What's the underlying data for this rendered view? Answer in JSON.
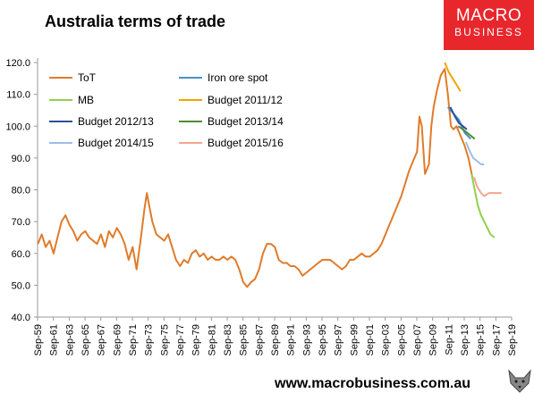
{
  "title": "Australia terms of trade",
  "logo": {
    "line1": "MACRO",
    "line2": "BUSINESS",
    "color": "#e8272c"
  },
  "footer": "www.macrobusiness.com.au",
  "chart_data": {
    "type": "line",
    "ylim": [
      40,
      120
    ],
    "yticks": [
      "40.0",
      "50.0",
      "60.0",
      "70.0",
      "80.0",
      "90.0",
      "100.0",
      "110.0",
      "120.0"
    ],
    "xticks": [
      "Sep-59",
      "Sep-61",
      "Sep-63",
      "Sep-65",
      "Sep-67",
      "Sep-69",
      "Sep-71",
      "Sep-73",
      "Sep-75",
      "Sep-77",
      "Sep-79",
      "Sep-81",
      "Sep-83",
      "Sep-85",
      "Sep-87",
      "Sep-89",
      "Sep-91",
      "Sep-93",
      "Sep-95",
      "Sep-97",
      "Sep-99",
      "Sep-01",
      "Sep-03",
      "Sep-05",
      "Sep-07",
      "Sep-09",
      "Sep-11",
      "Sep-13",
      "Sep-15",
      "Sep-17",
      "Sep-19"
    ],
    "xrange": [
      1959.67,
      2019.67
    ],
    "legend_placement": "top-left",
    "series": [
      {
        "name": "ToT",
        "color": "#e07b2a",
        "x": [
          1959.7,
          1960.2,
          1960.7,
          1961.2,
          1961.7,
          1962.2,
          1962.7,
          1963.2,
          1963.7,
          1964.2,
          1964.7,
          1965.2,
          1965.7,
          1966.2,
          1966.7,
          1967.2,
          1967.7,
          1968.2,
          1968.7,
          1969.2,
          1969.7,
          1970.2,
          1970.7,
          1971.2,
          1971.7,
          1972.2,
          1972.7,
          1973.2,
          1973.5,
          1973.8,
          1974.2,
          1974.7,
          1975.2,
          1975.7,
          1976.2,
          1976.7,
          1977.2,
          1977.7,
          1978.2,
          1978.7,
          1979.2,
          1979.7,
          1980.2,
          1980.7,
          1981.2,
          1981.7,
          1982.2,
          1982.7,
          1983.2,
          1983.7,
          1984.2,
          1984.7,
          1985.2,
          1985.7,
          1986.2,
          1986.7,
          1987.2,
          1987.7,
          1988.2,
          1988.7,
          1989.2,
          1989.7,
          1990.2,
          1990.7,
          1991.2,
          1991.7,
          1992.2,
          1992.7,
          1993.2,
          1993.7,
          1994.2,
          1994.7,
          1995.2,
          1995.7,
          1996.2,
          1996.7,
          1997.2,
          1997.7,
          1998.2,
          1998.7,
          1999.2,
          1999.7,
          2000.2,
          2000.7,
          2001.2,
          2001.7,
          2002.2,
          2002.7,
          2003.2,
          2003.7,
          2004.2,
          2004.7,
          2005.2,
          2005.7,
          2006.2,
          2006.7,
          2007.2,
          2007.7,
          2008.0,
          2008.3,
          2008.7,
          2009.2,
          2009.5,
          2009.8,
          2010.2,
          2010.7,
          2011.2,
          2011.6,
          2012.0,
          2012.3,
          2012.7,
          2013.2,
          2013.7,
          2014.2,
          2014.7
        ],
        "y": [
          63,
          66,
          62,
          64,
          60,
          65,
          70,
          72,
          69,
          67,
          64,
          66,
          67,
          65,
          64,
          63,
          66,
          62,
          67,
          65,
          68,
          66,
          63,
          58,
          62,
          55,
          64,
          74,
          79,
          75,
          70,
          66,
          65,
          64,
          66,
          62,
          58,
          56,
          58,
          57,
          60,
          61,
          59,
          60,
          58,
          59,
          58,
          58,
          59,
          58,
          59,
          58,
          55,
          51,
          49.5,
          51,
          52,
          55,
          60,
          63,
          63,
          62,
          58,
          57,
          57,
          56,
          56,
          55,
          53,
          54,
          55,
          56,
          57,
          58,
          58,
          58,
          57,
          56,
          55,
          56,
          58,
          58,
          59,
          60,
          59,
          59,
          60,
          61,
          63,
          66,
          69,
          72,
          75,
          78,
          82,
          86,
          89,
          92,
          103,
          100,
          85,
          88,
          100,
          106,
          111,
          116,
          118,
          110,
          100,
          99,
          100,
          97,
          94,
          90,
          84
        ]
      },
      {
        "name": "Iron ore spot",
        "color": "#4a90c8",
        "x": [
          2011.6,
          2012.3,
          2013.0,
          2013.7,
          2014.5
        ],
        "y": [
          106,
          104,
          102,
          98,
          96
        ]
      },
      {
        "name": "MB",
        "color": "#8fd14f",
        "x": [
          2014.6,
          2015.0,
          2015.4,
          2015.8,
          2016.2,
          2016.6,
          2017.0,
          2017.5
        ],
        "y": [
          85,
          80,
          75,
          72,
          70,
          68,
          66,
          65
        ]
      },
      {
        "name": "Budget 2011/12",
        "color": "#f0a400",
        "x": [
          2011.2,
          2011.7,
          2012.2,
          2012.7,
          2013.2
        ],
        "y": [
          120,
          117,
          115,
          113,
          111
        ]
      },
      {
        "name": "Budget 2012/13",
        "color": "#2a4f9c",
        "x": [
          2011.9,
          2012.5,
          2013.0,
          2013.5,
          2014.0
        ],
        "y": [
          106,
          103,
          101,
          100,
          99
        ]
      },
      {
        "name": "Budget 2013/14",
        "color": "#4d8c2f",
        "x": [
          2012.9,
          2013.5,
          2014.0,
          2014.5,
          2015.0
        ],
        "y": [
          100,
          99,
          98,
          97,
          96
        ]
      },
      {
        "name": "Budget 2014/15",
        "color": "#9dbde8",
        "x": [
          2013.9,
          2014.4,
          2014.8,
          2015.3,
          2015.8,
          2016.2
        ],
        "y": [
          95,
          92,
          90,
          89,
          88,
          88
        ]
      },
      {
        "name": "Budget 2015/16",
        "color": "#f4a68c",
        "x": [
          2014.9,
          2015.3,
          2015.8,
          2016.2,
          2016.8,
          2017.5,
          2018.4
        ],
        "y": [
          84,
          81,
          79,
          78,
          79,
          79,
          79
        ]
      }
    ]
  }
}
